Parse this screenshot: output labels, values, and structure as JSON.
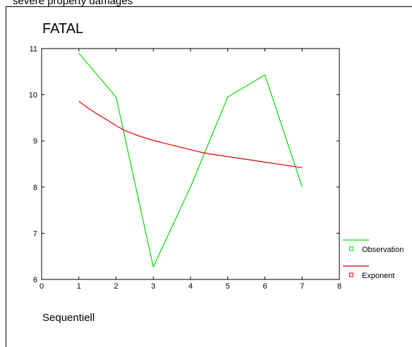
{
  "header": {
    "caption": "severe property damages"
  },
  "chart_data": {
    "type": "line",
    "title": "FATAL",
    "xlabel": "Sequentiell",
    "ylabel": "",
    "xlim": [
      0,
      8
    ],
    "ylim": [
      6,
      11
    ],
    "xticks": [
      0,
      1,
      2,
      3,
      4,
      5,
      6,
      7,
      8
    ],
    "yticks": [
      6,
      7,
      8,
      9,
      10,
      11
    ],
    "grid": false,
    "legend_position": "right",
    "series": [
      {
        "name": "Observation",
        "color": "#00e000",
        "x": [
          1,
          2,
          3,
          4,
          5,
          6,
          7
        ],
        "values": [
          10.9,
          9.95,
          6.27,
          8.0,
          9.95,
          10.43,
          8.0
        ]
      },
      {
        "name": "Exponent",
        "color": "#e00000",
        "x": [
          1,
          1.25,
          1.5,
          1.75,
          2,
          2.25,
          2.5,
          2.75,
          3,
          3.25,
          3.5,
          3.75,
          4,
          4.25,
          4.5,
          4.75,
          5,
          5.25,
          5.5,
          5.75,
          6,
          6.25,
          6.5,
          6.75,
          7
        ],
        "values": [
          9.86,
          9.71,
          9.58,
          9.46,
          9.33,
          9.22,
          9.14,
          9.07,
          9.01,
          8.96,
          8.91,
          8.86,
          8.81,
          8.76,
          8.72,
          8.69,
          8.66,
          8.63,
          8.6,
          8.57,
          8.54,
          8.51,
          8.48,
          8.45,
          8.42
        ]
      }
    ]
  }
}
